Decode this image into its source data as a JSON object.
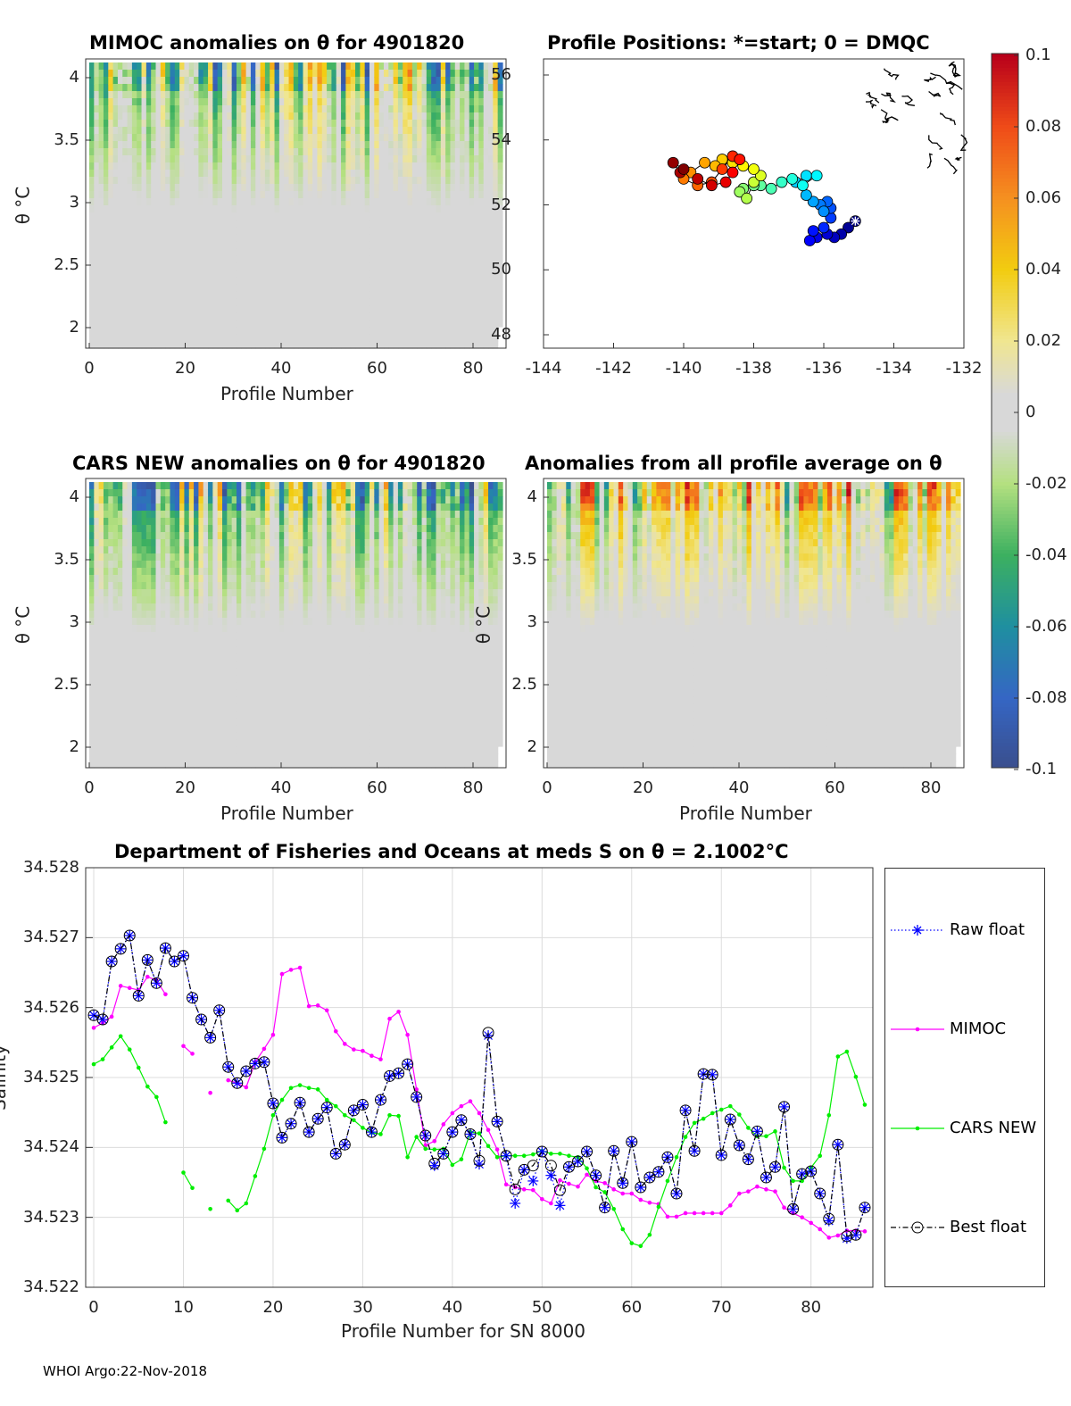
{
  "panels": {
    "mimoc": {
      "title": "MIMOC anomalies on θ  for 4901820",
      "xlabel": "Profile Number",
      "ylabel": "θ °C",
      "xticks": [
        "0",
        "20",
        "40",
        "60",
        "80"
      ],
      "yticks": [
        "4",
        "3.5",
        "3",
        "2.5",
        "2"
      ]
    },
    "map": {
      "title": "Profile Positions: *=start; 0 = DMQC",
      "xticks": [
        "-144",
        "-142",
        "-140",
        "-138",
        "-136",
        "-134",
        "-132"
      ],
      "yticks": [
        "56",
        "54",
        "52",
        "50",
        "48"
      ]
    },
    "cars": {
      "title": "CARS NEW anomalies on θ for 4901820",
      "xlabel": "Profile Number",
      "ylabel": "θ °C",
      "xticks": [
        "0",
        "20",
        "40",
        "60",
        "80"
      ],
      "yticks": [
        "4",
        "3.5",
        "3",
        "2.5",
        "2"
      ]
    },
    "avg": {
      "title": "Anomalies from all profile average on θ",
      "xlabel": "Profile Number",
      "ylabel": "θ °C",
      "xticks": [
        "0",
        "20",
        "40",
        "60",
        "80"
      ],
      "yticks": [
        "4",
        "3.5",
        "3",
        "2.5",
        "2"
      ]
    }
  },
  "colorbar": {
    "ticks": [
      "0.1",
      "0.08",
      "0.06",
      "0.04",
      "0.02",
      "0",
      "-0.02",
      "-0.04",
      "-0.06",
      "-0.08",
      "-0.1"
    ],
    "range": [
      -0.1,
      0.1
    ]
  },
  "map_track": {
    "lon": [
      -135.1,
      -135.3,
      -135.5,
      -135.7,
      -135.9,
      -136.2,
      -136.4,
      -136.3,
      -136.0,
      -135.8,
      -135.8,
      -135.9,
      -136.1,
      -136.0,
      -136.3,
      -136.5,
      -136.8,
      -136.5,
      -136.2,
      -136.6,
      -136.9,
      -137.2,
      -137.5,
      -137.8,
      -138.0,
      -138.3,
      -138.4,
      -138.2,
      -138.0,
      -137.8,
      -138.0,
      -138.3,
      -138.6,
      -138.9,
      -139.1,
      -139.4,
      -139.8,
      -140.0,
      -139.6,
      -139.2,
      -138.9,
      -138.6,
      -138.4,
      -138.6,
      -138.8,
      -139.2,
      -139.6,
      -140.1,
      -140.3,
      -140.0
    ],
    "lat": [
      51.5,
      51.3,
      51.1,
      51.0,
      51.1,
      51.0,
      50.9,
      51.2,
      51.3,
      51.6,
      51.9,
      52.1,
      52.0,
      51.8,
      52.1,
      52.3,
      52.7,
      52.9,
      52.9,
      52.6,
      52.8,
      52.7,
      52.5,
      52.6,
      52.6,
      52.5,
      52.4,
      52.2,
      52.7,
      52.9,
      53.1,
      53.2,
      53.3,
      53.4,
      53.2,
      53.3,
      53.0,
      52.8,
      52.6,
      52.7,
      53.1,
      53.5,
      53.4,
      53.0,
      52.7,
      52.6,
      52.8,
      53.0,
      53.3,
      53.1
    ]
  },
  "chart_data": {
    "type": "line",
    "title": "Department of Fisheries and Oceans at meds S on θ = 2.1002°C",
    "xlabel": "Profile Number for SN 8000",
    "ylabel": "Salinity",
    "xlim": [
      -0.9,
      86.9
    ],
    "ylim": [
      34.522,
      34.528
    ],
    "xticks": [
      "0",
      "10",
      "20",
      "30",
      "40",
      "50",
      "60",
      "70",
      "80"
    ],
    "yticks": [
      "34.528",
      "34.527",
      "34.526",
      "34.525",
      "34.524",
      "34.523",
      "34.522"
    ],
    "grid": true,
    "legend_placement": "outside-right",
    "series": [
      {
        "name": "Raw float",
        "color": "#0000ff",
        "style": "dotted-star",
        "values": [
          34.52589,
          34.52583,
          34.52666,
          34.52684,
          34.52703,
          34.52617,
          34.52668,
          34.52635,
          34.52685,
          34.52666,
          34.52674,
          34.52614,
          34.52583,
          34.52557,
          34.52596,
          34.52515,
          34.52492,
          34.52509,
          34.5252,
          34.52522,
          34.52463,
          34.52414,
          34.52434,
          34.52464,
          34.52422,
          34.52441,
          34.52457,
          34.52391,
          34.52404,
          34.52453,
          34.52461,
          34.52422,
          34.52468,
          34.52502,
          34.52506,
          34.52519,
          34.52472,
          34.52417,
          34.52374,
          34.52391,
          34.52422,
          34.52439,
          34.52419,
          34.52376,
          34.5256,
          34.52437,
          34.52388,
          34.5232,
          34.52368,
          34.52352,
          34.52394,
          34.5236,
          34.52317,
          34.52372,
          34.5238,
          34.52394,
          34.5236,
          34.52314,
          34.52395,
          34.52349,
          34.52408,
          34.52343,
          34.52357,
          34.52365,
          34.52386,
          34.52334,
          34.52453,
          34.52395,
          34.52505,
          34.52504,
          34.52389,
          34.5244,
          34.52403,
          34.52383,
          34.52423,
          34.52357,
          34.52372,
          34.52458,
          34.52312,
          34.52362,
          34.52366,
          34.52334,
          34.52295,
          34.52404,
          34.5227,
          34.52275,
          34.52314
        ]
      },
      {
        "name": "MIMOC",
        "color": "#ff00ff",
        "style": "solid-dot",
        "values": [
          34.52571,
          34.52578,
          34.52587,
          34.52631,
          34.52628,
          34.52625,
          34.52644,
          34.52639,
          34.52619,
          null,
          34.52545,
          34.52534,
          null,
          34.52478,
          null,
          34.52496,
          34.52492,
          34.52486,
          34.52522,
          34.52541,
          34.52561,
          34.52648,
          34.52654,
          34.52657,
          34.52602,
          34.52603,
          34.52596,
          34.52566,
          34.52548,
          34.5254,
          34.52538,
          34.52531,
          34.52526,
          34.52584,
          34.52594,
          34.52561,
          34.52483,
          34.52403,
          34.52409,
          34.52433,
          34.52449,
          34.52459,
          34.52466,
          34.52449,
          34.52425,
          34.52397,
          34.52347,
          34.52343,
          34.5234,
          34.52339,
          34.52326,
          34.5232,
          34.52353,
          34.52348,
          34.52344,
          34.52361,
          34.52352,
          34.52349,
          34.5234,
          34.52334,
          34.52334,
          34.52325,
          34.52321,
          34.52319,
          34.52301,
          34.52301,
          34.52306,
          34.52306,
          34.52306,
          34.52306,
          34.52306,
          34.52317,
          34.52334,
          34.52337,
          34.52344,
          34.5234,
          34.52337,
          34.52314,
          34.52306,
          34.523,
          34.52292,
          34.52283,
          34.52271,
          34.52274,
          34.52281,
          34.52281,
          34.5228
        ]
      },
      {
        "name": "CARS NEW",
        "color": "#00ee00",
        "style": "solid-dot",
        "values": [
          34.52519,
          34.52526,
          34.52543,
          34.52559,
          34.5254,
          34.52514,
          34.52487,
          34.52472,
          34.52436,
          null,
          34.52364,
          34.52342,
          null,
          34.52312,
          null,
          34.52324,
          34.5231,
          34.5232,
          34.52359,
          34.52398,
          34.52446,
          34.52468,
          34.52485,
          34.52489,
          34.52485,
          34.52483,
          34.52468,
          34.52459,
          34.52446,
          34.52439,
          34.52428,
          34.52421,
          34.52419,
          34.52446,
          34.52445,
          34.52386,
          34.52415,
          34.52398,
          34.52397,
          34.52398,
          34.52375,
          34.52383,
          34.52422,
          34.5242,
          34.52402,
          34.52386,
          34.52388,
          34.52388,
          34.52388,
          34.5239,
          34.52395,
          34.52391,
          34.52391,
          34.52388,
          34.52386,
          34.5237,
          34.52343,
          34.52336,
          34.52312,
          34.52283,
          34.52263,
          34.52259,
          34.52275,
          34.52315,
          34.52352,
          34.52386,
          34.52415,
          34.52435,
          34.52441,
          34.52449,
          34.52454,
          34.52459,
          34.52447,
          34.52428,
          34.52416,
          34.52416,
          34.52423,
          34.52371,
          34.52352,
          34.52352,
          34.52371,
          34.52388,
          34.52446,
          34.5253,
          34.52537,
          34.52501,
          34.52461
        ]
      },
      {
        "name": "Best float",
        "color": "#000000",
        "style": "dashdot-circle",
        "values": [
          34.52589,
          34.52583,
          34.52666,
          34.52684,
          34.52703,
          34.52617,
          34.52668,
          34.52635,
          34.52685,
          34.52666,
          34.52674,
          34.52614,
          34.52583,
          34.52557,
          34.52596,
          34.52515,
          34.52492,
          34.52509,
          34.5252,
          34.52522,
          34.52463,
          34.52414,
          34.52434,
          34.52464,
          34.52422,
          34.52441,
          34.52457,
          34.52391,
          34.52404,
          34.52453,
          34.52461,
          34.52422,
          34.52468,
          34.52502,
          34.52506,
          34.52519,
          34.52472,
          34.52417,
          34.52377,
          34.52391,
          34.52422,
          34.52439,
          34.52419,
          34.52381,
          34.52564,
          34.52437,
          34.52388,
          34.5234,
          34.52368,
          34.52374,
          34.52394,
          34.52374,
          34.52339,
          34.52372,
          34.5238,
          34.52394,
          34.5236,
          34.52314,
          34.52395,
          34.52349,
          34.52408,
          34.52343,
          34.52357,
          34.52365,
          34.52386,
          34.52334,
          34.52453,
          34.52395,
          34.52505,
          34.52504,
          34.52389,
          34.5244,
          34.52403,
          34.52383,
          34.52423,
          34.52357,
          34.52372,
          34.52458,
          34.52312,
          34.52362,
          34.52366,
          34.52334,
          34.52298,
          34.52404,
          34.52273,
          34.52275,
          34.52314
        ]
      }
    ]
  },
  "footer": "WHOI Argo:22-Nov-2018"
}
